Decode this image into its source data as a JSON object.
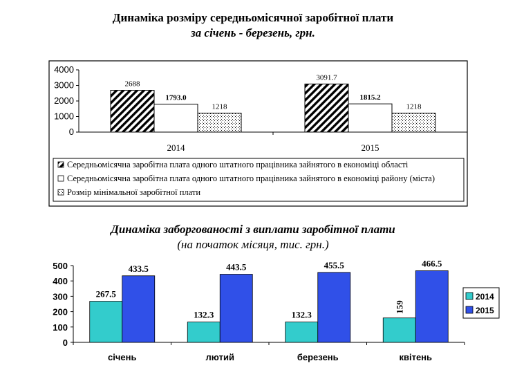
{
  "colors": {
    "teal": "#33cccc",
    "blue": "#3050e8",
    "frame": "#000000"
  },
  "chart_data": [
    {
      "type": "bar",
      "title": "Динаміка розміру середньомісячної заробітної плати",
      "subtitle": "за січень - березень, грн.",
      "categories": [
        "2014",
        "2015"
      ],
      "ylim": [
        0,
        4000
      ],
      "yticks": [
        "4000",
        "3000",
        "2000",
        "1000",
        "0"
      ],
      "ytick_values": [
        4000,
        3000,
        2000,
        1000,
        0
      ],
      "grid": false,
      "legend_position": "bottom",
      "series": [
        {
          "name": "Середньомісячна заробітна плата одного штатного працівника зайнятого в економіці області",
          "values": [
            2688,
            3091.7
          ],
          "labels": [
            "2688",
            "3091.7"
          ],
          "pattern": "diagonal-hatch"
        },
        {
          "name": "Середньомісячна заробітна плата одного штатного працівника  зайнятого в економіці району (міста)",
          "values": [
            1793.0,
            1815.2
          ],
          "labels": [
            "1793.0",
            "1815.2"
          ],
          "pattern": "white"
        },
        {
          "name": "Розмір мінімальної заробітної плати",
          "values": [
            1218,
            1218
          ],
          "labels": [
            "1218",
            "1218"
          ],
          "pattern": "dots"
        }
      ]
    },
    {
      "type": "bar",
      "title": "Динаміка заборгованості з виплати заробітної плати",
      "subtitle": "(на початок місяця, тис. грн.)",
      "categories": [
        "січень",
        "лютий",
        "березень",
        "квітень"
      ],
      "ylim": [
        0,
        500
      ],
      "yticks": [
        "500",
        "400",
        "300",
        "200",
        "100",
        "0"
      ],
      "ytick_values": [
        500,
        400,
        300,
        200,
        100,
        0
      ],
      "grid": false,
      "legend_position": "right",
      "series": [
        {
          "name": "2014",
          "color": "#33cccc",
          "values": [
            267.5,
            132.3,
            132.3,
            159
          ],
          "labels": [
            "267.5",
            "132.3",
            "132.3",
            "159"
          ]
        },
        {
          "name": "2015",
          "color": "#3050e8",
          "values": [
            433.5,
            443.5,
            455.5,
            466.5
          ],
          "labels": [
            "433.5",
            "443.5",
            "455.5",
            "466.5"
          ]
        }
      ]
    }
  ]
}
